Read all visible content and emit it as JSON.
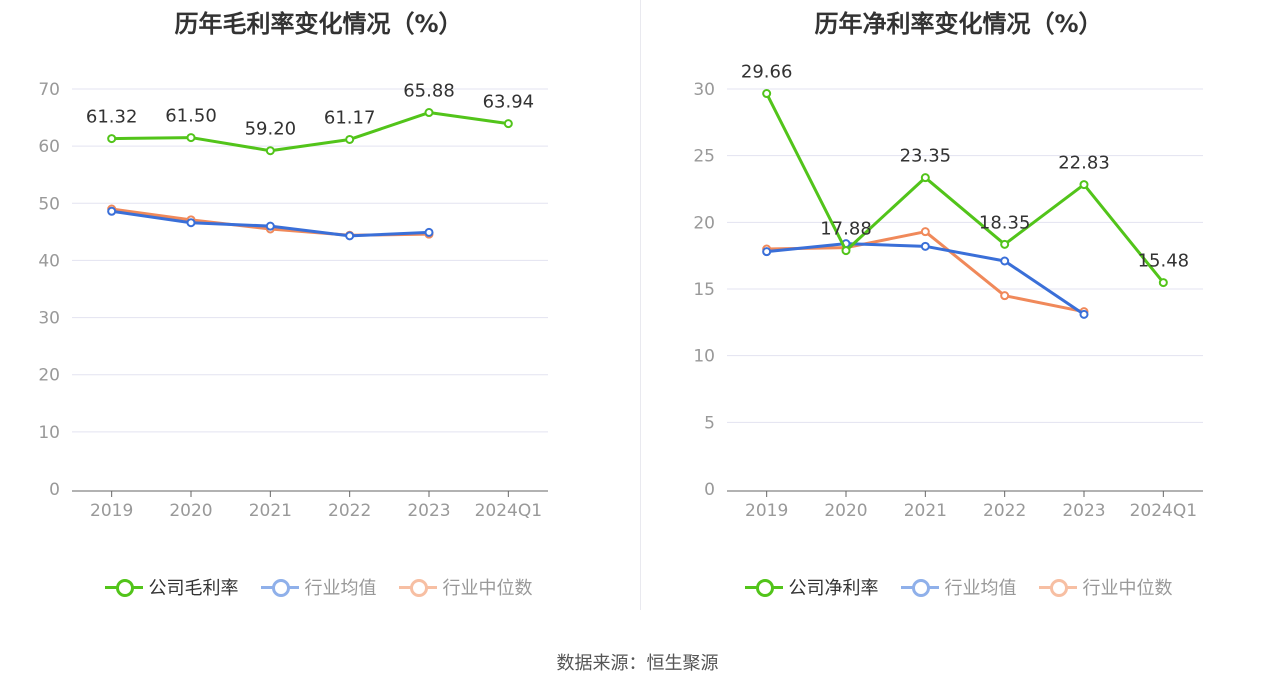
{
  "source_label": "数据来源：恒生聚源",
  "colors": {
    "company": "#52c41a",
    "industry_avg": "#3a6fd8",
    "industry_median": "#f0895a",
    "legend_avg_inactive": "#8fb0ea",
    "legend_median_inactive": "#f7bfa3",
    "grid": "#e3e3f0",
    "axis_text": "#999999"
  },
  "legend_icons": [
    "circle-line-marker",
    "circle-line-marker",
    "circle-line-marker"
  ],
  "chart_data": [
    {
      "type": "line",
      "title": "历年毛利率变化情况（%）",
      "categories": [
        "2019",
        "2020",
        "2021",
        "2022",
        "2023",
        "2024Q1"
      ],
      "ylim": [
        0,
        70
      ],
      "yticks": [
        0,
        10,
        20,
        30,
        40,
        50,
        60,
        70
      ],
      "grid": true,
      "legend_position": "bottom",
      "series": [
        {
          "name": "公司毛利率",
          "values": [
            61.32,
            61.5,
            59.2,
            61.17,
            65.88,
            63.94
          ],
          "labels": [
            "61.32",
            "61.50",
            "59.20",
            "61.17",
            "65.88",
            "63.94"
          ]
        },
        {
          "name": "行业均值",
          "values": [
            48.6,
            46.6,
            46.0,
            44.3,
            44.9,
            null
          ]
        },
        {
          "name": "行业中位数",
          "values": [
            49.0,
            47.1,
            45.5,
            44.4,
            44.6,
            null
          ]
        }
      ]
    },
    {
      "type": "line",
      "title": "历年净利率变化情况（%）",
      "categories": [
        "2019",
        "2020",
        "2021",
        "2022",
        "2023",
        "2024Q1"
      ],
      "ylim": [
        0,
        30
      ],
      "yticks": [
        0,
        5,
        10,
        15,
        20,
        25,
        30
      ],
      "grid": true,
      "legend_position": "bottom",
      "series": [
        {
          "name": "公司净利率",
          "values": [
            29.66,
            17.88,
            23.35,
            18.35,
            22.83,
            15.48
          ],
          "labels": [
            "29.66",
            "17.88",
            "23.35",
            "18.35",
            "22.83",
            "15.48"
          ]
        },
        {
          "name": "行业均值",
          "values": [
            17.8,
            18.4,
            18.2,
            17.1,
            13.1,
            null
          ]
        },
        {
          "name": "行业中位数",
          "values": [
            18.0,
            18.1,
            19.3,
            14.5,
            13.3,
            null
          ]
        }
      ]
    }
  ]
}
